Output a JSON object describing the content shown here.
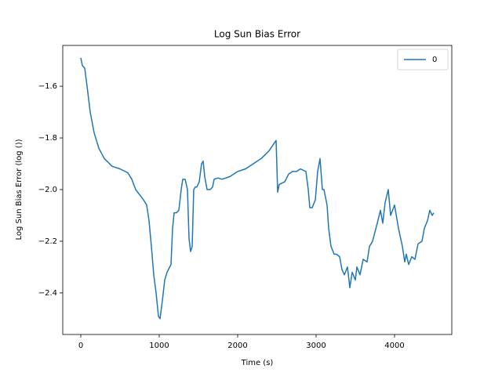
{
  "chart_data": {
    "type": "line",
    "title": "Log Sun Bias Error",
    "x_label": "Time (s)",
    "y_label": "Log Sun Bias Error (log ())",
    "x": [
      0,
      20,
      50,
      80,
      120,
      170,
      230,
      300,
      400,
      500,
      600,
      650,
      700,
      750,
      800,
      840,
      870,
      900,
      930,
      960,
      990,
      1010,
      1040,
      1070,
      1100,
      1150,
      1170,
      1190,
      1220,
      1250,
      1280,
      1300,
      1330,
      1360,
      1380,
      1400,
      1420,
      1440,
      1460,
      1480,
      1510,
      1540,
      1560,
      1580,
      1610,
      1650,
      1680,
      1700,
      1750,
      1800,
      1900,
      2000,
      2100,
      2200,
      2300,
      2400,
      2490,
      2510,
      2530,
      2600,
      2650,
      2700,
      2750,
      2800,
      2870,
      2900,
      2920,
      2950,
      2990,
      3020,
      3050,
      3080,
      3100,
      3140,
      3160,
      3190,
      3230,
      3260,
      3300,
      3330,
      3360,
      3400,
      3430,
      3460,
      3500,
      3520,
      3560,
      3600,
      3650,
      3680,
      3720,
      3780,
      3820,
      3850,
      3880,
      3920,
      3950,
      4000,
      4050,
      4100,
      4130,
      4150,
      4180,
      4220,
      4260,
      4300,
      4350,
      4380,
      4420,
      4450,
      4480,
      4500
    ],
    "series": [
      {
        "name": "0",
        "color": "#1f77b4",
        "values": [
          -1.49,
          -1.52,
          -1.53,
          -1.6,
          -1.7,
          -1.78,
          -1.84,
          -1.88,
          -1.91,
          -1.92,
          -1.935,
          -1.96,
          -2.0,
          -2.02,
          -2.04,
          -2.06,
          -2.12,
          -2.22,
          -2.33,
          -2.4,
          -2.49,
          -2.5,
          -2.43,
          -2.35,
          -2.32,
          -2.29,
          -2.15,
          -2.09,
          -2.09,
          -2.08,
          -2.0,
          -1.96,
          -1.96,
          -2.0,
          -2.19,
          -2.24,
          -2.22,
          -2.0,
          -1.99,
          -1.99,
          -1.97,
          -1.9,
          -1.89,
          -1.95,
          -2.0,
          -2.0,
          -1.99,
          -1.96,
          -1.955,
          -1.96,
          -1.95,
          -1.93,
          -1.92,
          -1.9,
          -1.88,
          -1.85,
          -1.81,
          -2.01,
          -1.98,
          -1.97,
          -1.94,
          -1.93,
          -1.93,
          -1.92,
          -1.93,
          -2.0,
          -2.07,
          -2.07,
          -2.04,
          -1.93,
          -1.88,
          -2.0,
          -2.0,
          -2.06,
          -2.15,
          -2.22,
          -2.25,
          -2.25,
          -2.26,
          -2.31,
          -2.33,
          -2.3,
          -2.38,
          -2.32,
          -2.35,
          -2.3,
          -2.33,
          -2.27,
          -2.28,
          -2.22,
          -2.2,
          -2.13,
          -2.08,
          -2.13,
          -2.05,
          -2.0,
          -2.1,
          -2.06,
          -2.15,
          -2.22,
          -2.28,
          -2.25,
          -2.29,
          -2.26,
          -2.27,
          -2.21,
          -2.2,
          -2.15,
          -2.12,
          -2.08,
          -2.1,
          -2.09
        ]
      }
    ],
    "xlim": [
      -230,
      4730
    ],
    "ylim": [
      -2.561,
      -1.442
    ],
    "xticks": [
      0,
      1000,
      2000,
      3000,
      4000
    ],
    "yticks": [
      {
        "value": -2.4,
        "label": "−2.4"
      },
      {
        "value": -2.2,
        "label": "−2.2"
      },
      {
        "value": -2.0,
        "label": "−2.0"
      },
      {
        "value": -1.8,
        "label": "−1.8"
      },
      {
        "value": -1.6,
        "label": "−1.6"
      }
    ],
    "grid": false,
    "legend": "upper right"
  }
}
